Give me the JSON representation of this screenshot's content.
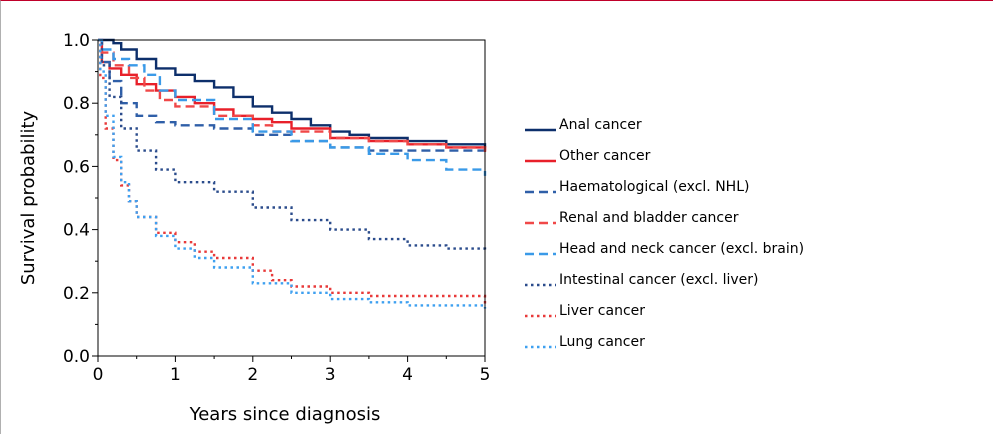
{
  "chart_data": {
    "type": "line",
    "xlabel": "Years since diagnosis",
    "ylabel": "Survival probability",
    "xlim": [
      0,
      5
    ],
    "ylim": [
      0,
      1
    ],
    "x_ticks": [
      "0",
      "1",
      "2",
      "3",
      "4",
      "5"
    ],
    "y_ticks": [
      "0.0",
      "0.2",
      "0.4",
      "0.6",
      "0.8",
      "1.0"
    ],
    "grid": false,
    "legend_position": "right",
    "series": [
      {
        "name": "Anal cancer",
        "color": "#0d2f6b",
        "style": "solid",
        "x": [
          0,
          0.1,
          0.2,
          0.3,
          0.5,
          0.75,
          1.0,
          1.25,
          1.5,
          1.75,
          2.0,
          2.25,
          2.5,
          2.75,
          3.0,
          3.25,
          3.5,
          4.0,
          4.5,
          5.0
        ],
        "y": [
          1.0,
          1.0,
          0.99,
          0.97,
          0.94,
          0.91,
          0.89,
          0.87,
          0.85,
          0.82,
          0.79,
          0.77,
          0.75,
          0.73,
          0.71,
          0.7,
          0.69,
          0.68,
          0.67,
          0.66
        ]
      },
      {
        "name": "Other cancer",
        "color": "#e8202a",
        "style": "solid",
        "x": [
          0,
          0.05,
          0.15,
          0.3,
          0.5,
          0.75,
          1.0,
          1.25,
          1.5,
          1.75,
          2.0,
          2.25,
          2.5,
          3.0,
          3.5,
          4.0,
          4.5,
          5.0
        ],
        "y": [
          1.0,
          0.93,
          0.91,
          0.89,
          0.86,
          0.84,
          0.82,
          0.8,
          0.78,
          0.76,
          0.75,
          0.74,
          0.72,
          0.69,
          0.68,
          0.67,
          0.66,
          0.65
        ]
      },
      {
        "name": "Haematological (excl. NHL)",
        "color": "#2f5fa8",
        "style": "dashed",
        "x": [
          0,
          0.05,
          0.15,
          0.3,
          0.5,
          0.75,
          1.0,
          1.5,
          2.0,
          2.5,
          3.0,
          3.5,
          4.0,
          4.5,
          5.0
        ],
        "y": [
          1.0,
          0.93,
          0.87,
          0.8,
          0.76,
          0.74,
          0.73,
          0.72,
          0.7,
          0.68,
          0.66,
          0.65,
          0.65,
          0.65,
          0.65
        ]
      },
      {
        "name": "Renal and bladder cancer",
        "color": "#f04848",
        "style": "dashed",
        "x": [
          0,
          0.05,
          0.2,
          0.4,
          0.6,
          0.8,
          1.0,
          1.5,
          2.0,
          2.25,
          2.5,
          3.0,
          3.5,
          4.0,
          4.5,
          5.0
        ],
        "y": [
          1.0,
          0.96,
          0.92,
          0.88,
          0.84,
          0.81,
          0.79,
          0.76,
          0.73,
          0.71,
          0.71,
          0.69,
          0.68,
          0.67,
          0.66,
          0.64
        ]
      },
      {
        "name": "Head and neck cancer (excl. brain)",
        "color": "#3a9ae8",
        "style": "dashed",
        "x": [
          0,
          0.05,
          0.2,
          0.4,
          0.6,
          0.8,
          1.0,
          1.5,
          2.0,
          2.5,
          3.0,
          3.5,
          4.0,
          4.5,
          5.0
        ],
        "y": [
          1.0,
          0.97,
          0.94,
          0.92,
          0.89,
          0.84,
          0.81,
          0.75,
          0.71,
          0.68,
          0.66,
          0.64,
          0.62,
          0.59,
          0.57
        ]
      },
      {
        "name": "Intestinal cancer (excl. liver)",
        "color": "#2b4c8c",
        "style": "dotted",
        "x": [
          0,
          0.05,
          0.15,
          0.3,
          0.5,
          0.75,
          1.0,
          1.5,
          2.0,
          2.5,
          3.0,
          3.5,
          4.0,
          4.5,
          5.0
        ],
        "y": [
          1.0,
          0.92,
          0.82,
          0.72,
          0.65,
          0.59,
          0.55,
          0.52,
          0.47,
          0.43,
          0.4,
          0.37,
          0.35,
          0.34,
          0.33
        ]
      },
      {
        "name": "Liver cancer",
        "color": "#e83a3a",
        "style": "dotted",
        "x": [
          0,
          0.03,
          0.1,
          0.2,
          0.3,
          0.4,
          0.5,
          0.75,
          1.0,
          1.25,
          1.5,
          2.0,
          2.25,
          2.5,
          3.0,
          3.5,
          4.0,
          4.5,
          5.0
        ],
        "y": [
          1.0,
          0.88,
          0.72,
          0.62,
          0.54,
          0.49,
          0.44,
          0.39,
          0.36,
          0.33,
          0.31,
          0.27,
          0.24,
          0.22,
          0.2,
          0.19,
          0.19,
          0.19,
          0.16
        ]
      },
      {
        "name": "Lung cancer",
        "color": "#3ea0f0",
        "style": "dotted",
        "x": [
          0,
          0.03,
          0.1,
          0.2,
          0.3,
          0.4,
          0.5,
          0.75,
          1.0,
          1.25,
          1.5,
          2.0,
          2.5,
          3.0,
          3.5,
          4.0,
          4.5,
          5.0
        ],
        "y": [
          1.0,
          0.9,
          0.76,
          0.63,
          0.55,
          0.49,
          0.44,
          0.38,
          0.34,
          0.31,
          0.28,
          0.23,
          0.2,
          0.18,
          0.17,
          0.16,
          0.16,
          0.15
        ]
      }
    ]
  }
}
